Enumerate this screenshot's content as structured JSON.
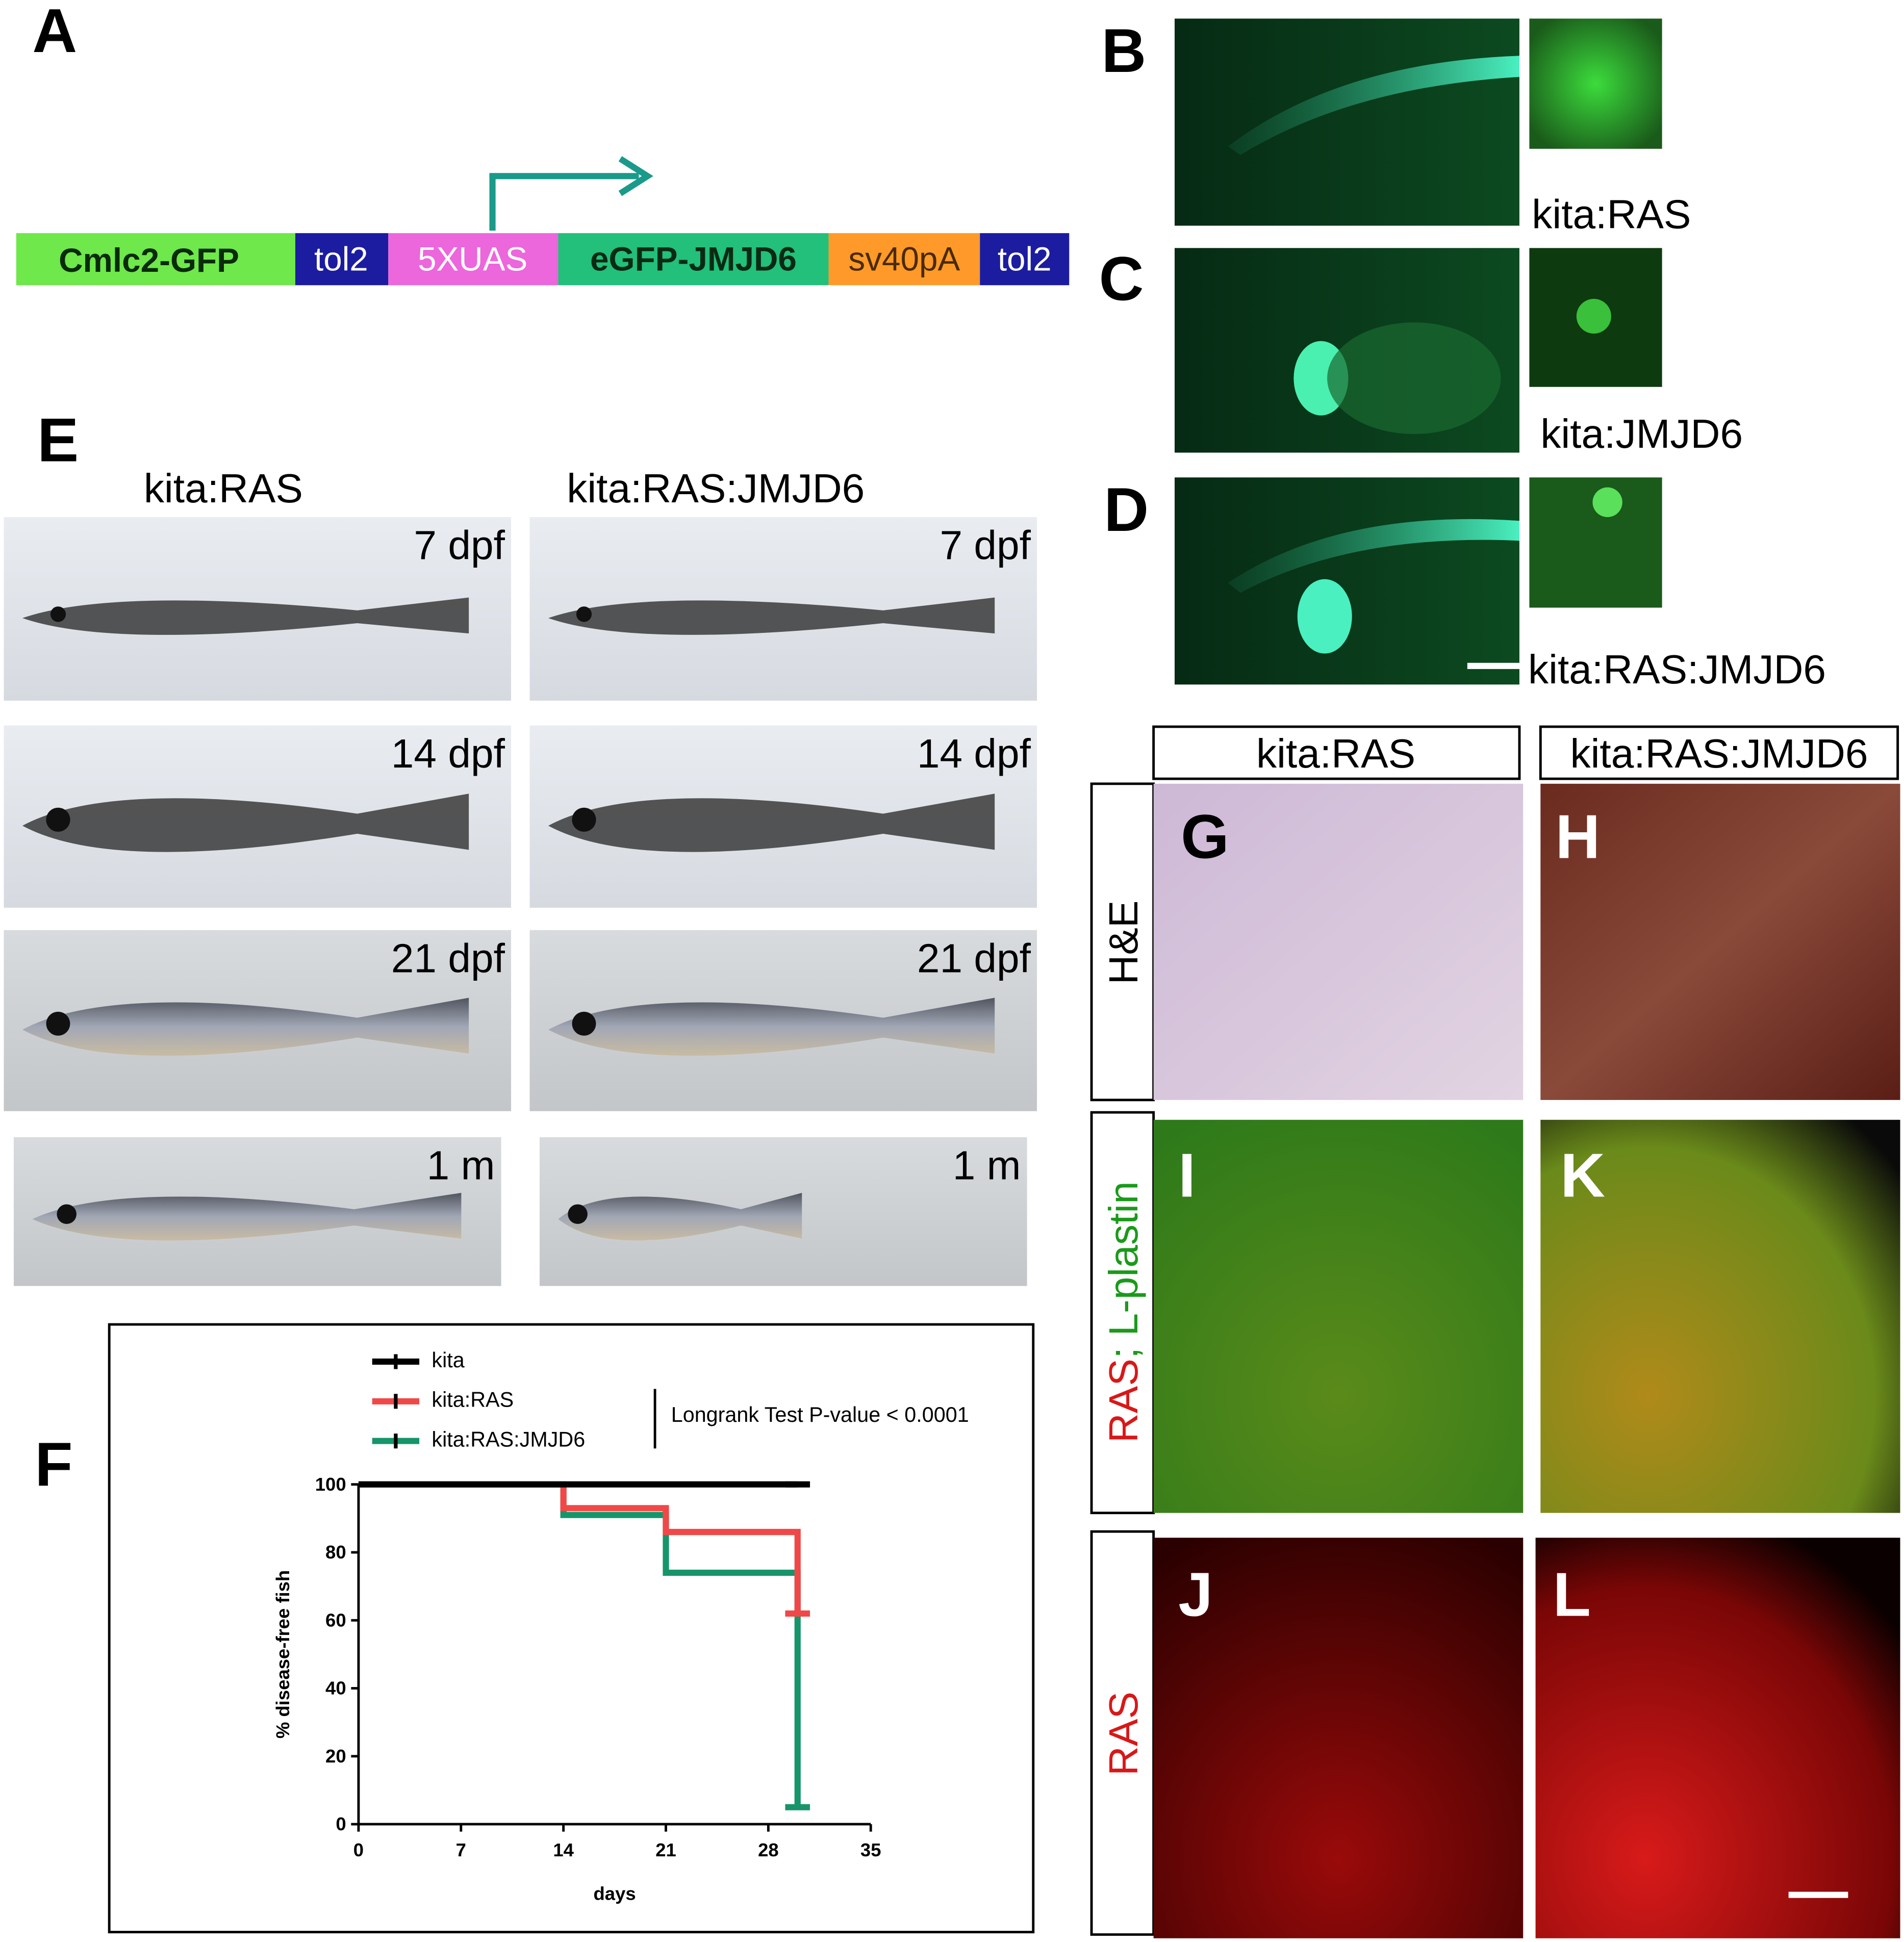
{
  "panel_a": {
    "letter": "A",
    "construct": [
      "Cmlc2-GFP",
      "tol2",
      "5XUAS",
      "eGFP-JMJD6",
      "sv40pA",
      "tol2"
    ]
  },
  "panel_b": {
    "letter": "B",
    "caption": "kita:RAS"
  },
  "panel_c": {
    "letter": "C",
    "caption": "kita:JMJD6"
  },
  "panel_d": {
    "letter": "D",
    "caption": "kita:RAS:JMJD6"
  },
  "panel_e": {
    "letter": "E",
    "columns": [
      "kita:RAS",
      "kita:RAS:JMJD6"
    ],
    "timepoints": [
      "7 dpf",
      "14 dpf",
      "21 dpf",
      "1 m"
    ]
  },
  "panel_f": {
    "letter": "F"
  },
  "chart_data": {
    "type": "line",
    "step": "post",
    "x": [
      0,
      14,
      21,
      30
    ],
    "series": [
      {
        "name": "kita",
        "color": "#000000",
        "values": [
          100,
          100,
          100,
          100
        ]
      },
      {
        "name": "kita:RAS",
        "color": "#f04848",
        "values": [
          100,
          93,
          86,
          62
        ]
      },
      {
        "name": "kita:RAS:JMJD6",
        "color": "#16956a",
        "values": [
          100,
          91,
          74,
          5
        ]
      }
    ],
    "annotation": "Longrank Test P-value < 0.0001",
    "xlabel": "days",
    "ylabel": "% disease-free fish",
    "xlim": [
      0,
      35
    ],
    "xticks": [
      0,
      7,
      14,
      21,
      28,
      35
    ],
    "ylim": [
      0,
      100
    ],
    "yticks": [
      0,
      20,
      40,
      60,
      80,
      100
    ],
    "legend": "top"
  },
  "panels_gl": {
    "column_headers": [
      "kita:RAS",
      "kita:RAS:JMJD6"
    ],
    "row_labels": {
      "he": "H&E",
      "ras": "RAS",
      "lplastin": "; L-plastin",
      "ras_only": "RAS"
    },
    "letters": [
      "G",
      "H",
      "I",
      "K",
      "J",
      "L"
    ]
  }
}
